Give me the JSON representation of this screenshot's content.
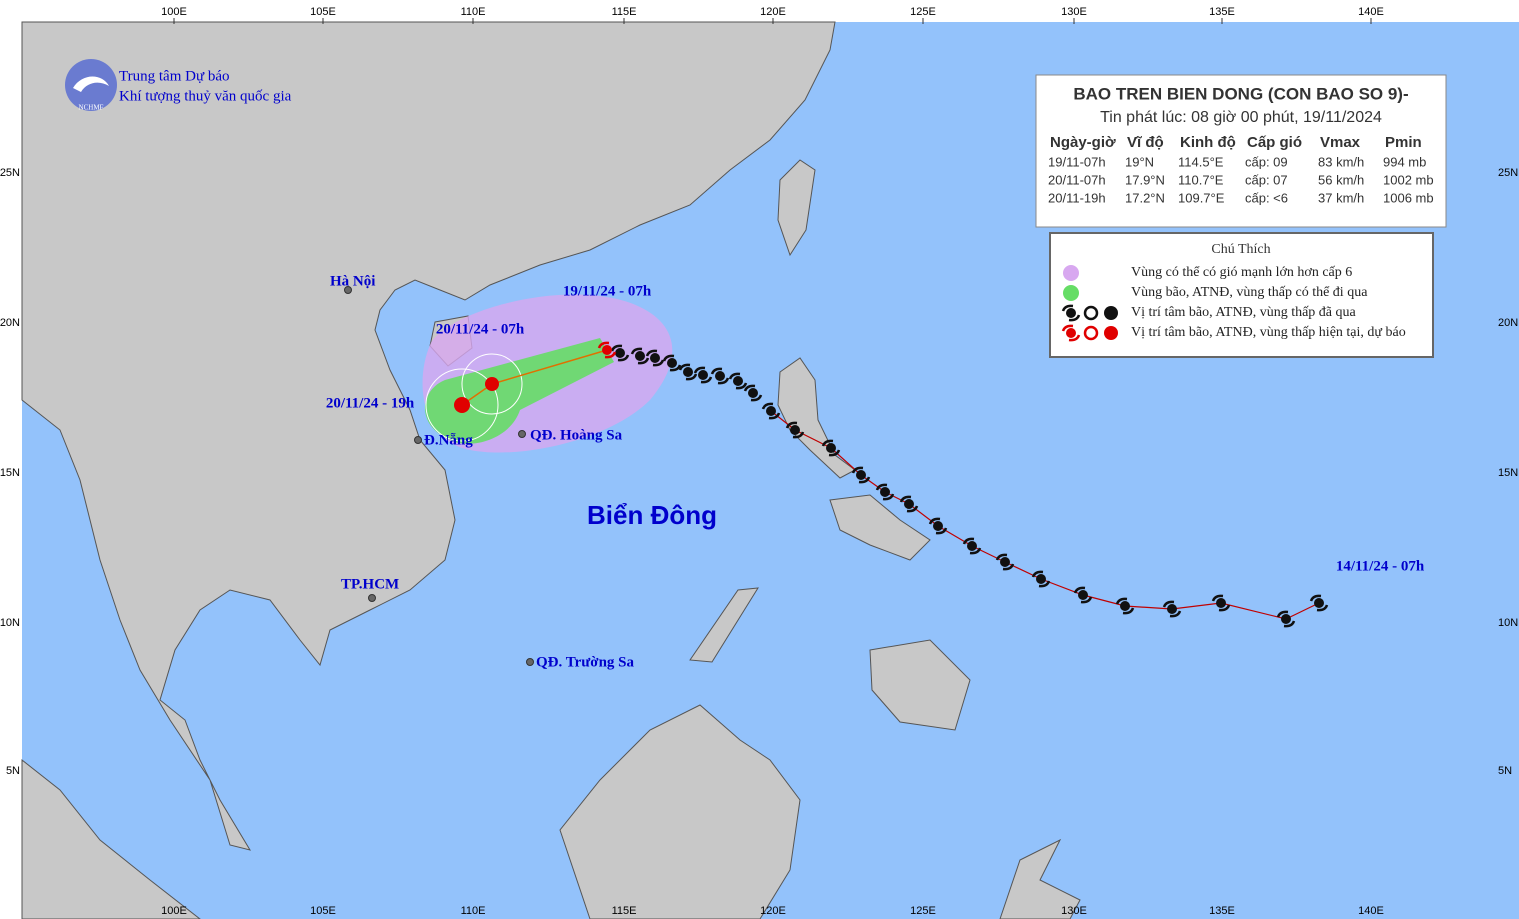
{
  "header": {
    "org_line1": "Trung tâm Dự báo",
    "org_line2": "Khí tượng thuỷ văn quốc gia",
    "logo_text": "NCHMF"
  },
  "axes": {
    "lon_labels": [
      "100E",
      "105E",
      "110E",
      "115E",
      "120E",
      "125E",
      "130E",
      "135E",
      "140E"
    ],
    "lat_labels": [
      "25N",
      "20N",
      "15N",
      "10N",
      "5N"
    ]
  },
  "sea_label": "Biển Đông",
  "places": [
    "Hà Nội",
    "Đ.Nẵng",
    "QĐ. Hoàng Sa",
    "TP.HCM",
    "QĐ. Trường Sa"
  ],
  "track_labels": [
    "19/11/24 - 07h",
    "20/11/24 - 07h",
    "20/11/24 - 19h",
    "14/11/24 - 07h"
  ],
  "info_box": {
    "title": "BAO TREN BIEN DONG (CON BAO SO 9)-",
    "issued": "Tin phát lúc: 08 giờ 00 phút, 19/11/2024",
    "columns": [
      "Ngày-giờ",
      "Vĩ độ",
      "Kinh độ",
      "Cấp gió",
      "Vmax",
      "Pmin"
    ],
    "rows": [
      [
        "19/11-07h",
        "19°N",
        "114.5°E",
        "cấp: 09",
        "83 km/h",
        "994 mb"
      ],
      [
        "20/11-07h",
        "17.9°N",
        "110.7°E",
        "cấp: 07",
        "56 km/h",
        "1002 mb"
      ],
      [
        "20/11-19h",
        "17.2°N",
        "109.7°E",
        "cấp: <6",
        "37 km/h",
        "1006 mb"
      ]
    ]
  },
  "legend": {
    "title": "Chú Thích",
    "items": [
      "Vùng có thể có gió mạnh lớn hơn cấp 6",
      "Vùng bão, ATNĐ, vùng thấp có thể đi qua",
      "Vị trí tâm bão, ATNĐ, vùng thấp đã qua",
      "Vị trí tâm bão, ATNĐ, vùng thấp hiện tại, dự báo"
    ]
  }
}
